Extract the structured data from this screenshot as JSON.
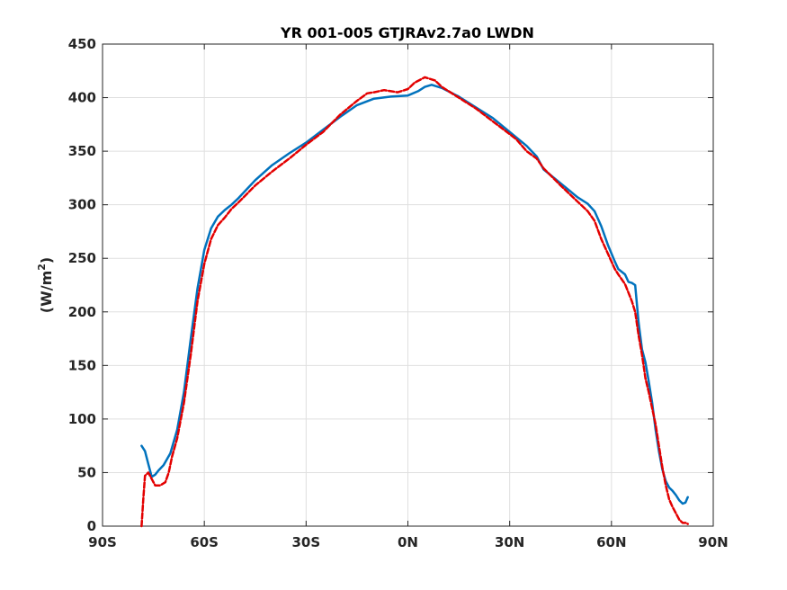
{
  "chart_data": {
    "type": "line",
    "title": "YR 001-005 GTJRAv2.7a0 LWDN",
    "xlabel": "",
    "ylabel": "(W/m",
    "ylabel_superscript": "2",
    "ylabel_close": ")",
    "xlim": [
      -90,
      90
    ],
    "ylim": [
      0,
      450
    ],
    "grid": true,
    "x_ticks": [
      -90,
      -60,
      -30,
      0,
      30,
      60,
      90
    ],
    "x_tick_labels": [
      "90S",
      "60S",
      "30S",
      "0N",
      "30N",
      "60N",
      "90N"
    ],
    "y_ticks": [
      0,
      50,
      100,
      150,
      200,
      250,
      300,
      350,
      400,
      450
    ],
    "y_tick_labels": [
      "0",
      "50",
      "100",
      "150",
      "200",
      "250",
      "300",
      "350",
      "400",
      "450"
    ],
    "series": [
      {
        "color": "#0072BD",
        "style": "solid",
        "points": [
          [
            -78.5,
            75
          ],
          [
            -77.5,
            70
          ],
          [
            -76.5,
            58
          ],
          [
            -75.5,
            46
          ],
          [
            -74.5,
            48
          ],
          [
            -73.5,
            52
          ],
          [
            -72,
            57
          ],
          [
            -70,
            68
          ],
          [
            -68,
            90
          ],
          [
            -66,
            125
          ],
          [
            -64,
            175
          ],
          [
            -62,
            222
          ],
          [
            -60,
            258
          ],
          [
            -58,
            278
          ],
          [
            -56,
            289
          ],
          [
            -54,
            295
          ],
          [
            -52,
            300
          ],
          [
            -50,
            306
          ],
          [
            -45,
            323
          ],
          [
            -40,
            337
          ],
          [
            -35,
            348
          ],
          [
            -30,
            358
          ],
          [
            -25,
            370
          ],
          [
            -20,
            382
          ],
          [
            -15,
            393
          ],
          [
            -10,
            399
          ],
          [
            -5,
            401
          ],
          [
            0,
            402
          ],
          [
            3,
            406
          ],
          [
            5,
            410
          ],
          [
            7,
            412
          ],
          [
            10,
            409
          ],
          [
            15,
            401
          ],
          [
            20,
            391
          ],
          [
            25,
            381
          ],
          [
            30,
            368
          ],
          [
            35,
            355
          ],
          [
            38,
            345
          ],
          [
            40,
            333
          ],
          [
            45,
            320
          ],
          [
            50,
            307
          ],
          [
            53,
            301
          ],
          [
            55,
            294
          ],
          [
            57,
            280
          ],
          [
            59,
            262
          ],
          [
            61,
            247
          ],
          [
            62,
            240
          ],
          [
            64,
            235
          ],
          [
            65,
            228
          ],
          [
            66,
            227
          ],
          [
            67,
            225
          ],
          [
            68,
            190
          ],
          [
            69,
            165
          ],
          [
            70,
            153
          ],
          [
            71,
            135
          ],
          [
            72,
            115
          ],
          [
            73,
            90
          ],
          [
            74,
            70
          ],
          [
            75,
            53
          ],
          [
            76,
            42
          ],
          [
            77,
            36
          ],
          [
            78,
            33
          ],
          [
            79,
            29
          ],
          [
            80,
            24
          ],
          [
            81,
            21
          ],
          [
            81.8,
            22
          ],
          [
            82.5,
            27
          ]
        ]
      },
      {
        "color": "#E30000",
        "style": "dashed",
        "points": [
          [
            -78.5,
            0
          ],
          [
            -78,
            25
          ],
          [
            -77.5,
            47
          ],
          [
            -76.5,
            50
          ],
          [
            -75.5,
            44
          ],
          [
            -74.5,
            38
          ],
          [
            -73,
            38
          ],
          [
            -71.5,
            41
          ],
          [
            -70.5,
            50
          ],
          [
            -69.5,
            65
          ],
          [
            -68,
            82
          ],
          [
            -66,
            115
          ],
          [
            -64,
            160
          ],
          [
            -62,
            210
          ],
          [
            -60,
            245
          ],
          [
            -58,
            268
          ],
          [
            -56,
            281
          ],
          [
            -54,
            288
          ],
          [
            -52,
            296
          ],
          [
            -50,
            302
          ],
          [
            -45,
            318
          ],
          [
            -40,
            331
          ],
          [
            -35,
            343
          ],
          [
            -30,
            356
          ],
          [
            -25,
            368
          ],
          [
            -20,
            384
          ],
          [
            -15,
            397
          ],
          [
            -12,
            404
          ],
          [
            -10,
            405
          ],
          [
            -7,
            407
          ],
          [
            -5,
            406
          ],
          [
            -3,
            405
          ],
          [
            0,
            408
          ],
          [
            2,
            414
          ],
          [
            5,
            419
          ],
          [
            8,
            416
          ],
          [
            10,
            410
          ],
          [
            15,
            400
          ],
          [
            20,
            390
          ],
          [
            25,
            378
          ],
          [
            30,
            366
          ],
          [
            32,
            361
          ],
          [
            35,
            350
          ],
          [
            38,
            343
          ],
          [
            40,
            334
          ],
          [
            45,
            318
          ],
          [
            50,
            303
          ],
          [
            53,
            294
          ],
          [
            55,
            285
          ],
          [
            57,
            268
          ],
          [
            59,
            254
          ],
          [
            61,
            240
          ],
          [
            62,
            235
          ],
          [
            64,
            226
          ],
          [
            65,
            218
          ],
          [
            66,
            210
          ],
          [
            67,
            200
          ],
          [
            68,
            178
          ],
          [
            69,
            160
          ],
          [
            70,
            138
          ],
          [
            71,
            125
          ],
          [
            72,
            110
          ],
          [
            73,
            95
          ],
          [
            74,
            75
          ],
          [
            75,
            55
          ],
          [
            76,
            38
          ],
          [
            77,
            25
          ],
          [
            78,
            18
          ],
          [
            79,
            12
          ],
          [
            80,
            6
          ],
          [
            81,
            3
          ],
          [
            82,
            3
          ],
          [
            82.5,
            2
          ]
        ]
      }
    ]
  }
}
